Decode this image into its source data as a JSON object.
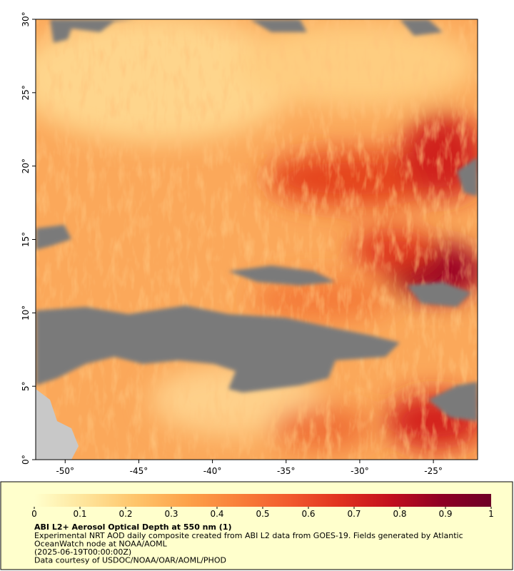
{
  "map": {
    "xaxis": {
      "lim": [
        -52,
        -22
      ],
      "ticks": [
        {
          "value": -50,
          "label": "-50°"
        },
        {
          "value": -45,
          "label": "-45°"
        },
        {
          "value": -40,
          "label": "-40°"
        },
        {
          "value": -35,
          "label": "-35°"
        },
        {
          "value": -30,
          "label": "-30°"
        },
        {
          "value": -25,
          "label": "-25°"
        }
      ]
    },
    "yaxis": {
      "lim": [
        0,
        30
      ],
      "ticks": [
        {
          "value": 0,
          "label": "0°"
        },
        {
          "value": 5,
          "label": "5°"
        },
        {
          "value": 10,
          "label": "10°"
        },
        {
          "value": 15,
          "label": "15°"
        },
        {
          "value": 20,
          "label": "20°"
        },
        {
          "value": 25,
          "label": "25°"
        },
        {
          "value": 30,
          "label": "30°"
        }
      ]
    }
  },
  "colorbar": {
    "lim": [
      0,
      1
    ],
    "ticks": [
      0,
      0.1,
      0.2,
      0.3,
      0.4,
      0.5,
      0.6,
      0.7,
      0.8,
      0.9,
      1
    ],
    "colors": [
      "#ffffcc",
      "#fee49a",
      "#fec46a",
      "#fda24a",
      "#f9803a",
      "#f25b2e",
      "#e1321f",
      "#c3101e",
      "#8f0024",
      "#6e0026"
    ]
  },
  "caption": {
    "title": "ABI L2+ Aerosol Optical Depth at 550 nm (1)",
    "lines": [
      "Experimental NRT AOD daily composite created from ABI L2 data from GOES-19. Fields generated by Atlantic",
      "OceanWatch node at NOAA/AOML",
      "(2025-06-19T00:00:00Z)",
      "Data courtesy of USDOC/NOAA/OAR/AOML/PHOD"
    ]
  }
}
